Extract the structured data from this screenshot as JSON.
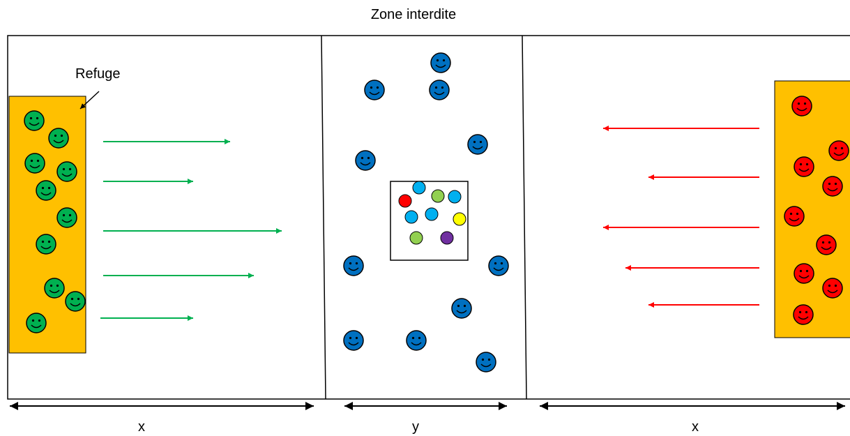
{
  "title": "Zone interdite",
  "refuge_label": "Refuge",
  "dimensions": {
    "left": "x",
    "middle": "y",
    "right": "x"
  },
  "colors": {
    "refuge": "#FFC000",
    "green": "#00B050",
    "red": "#FF0000",
    "blue": "#0070C0",
    "light_blue": "#00B0F0",
    "light_green": "#92D050",
    "yellow": "#FFFF00",
    "purple": "#7030A0"
  }
}
